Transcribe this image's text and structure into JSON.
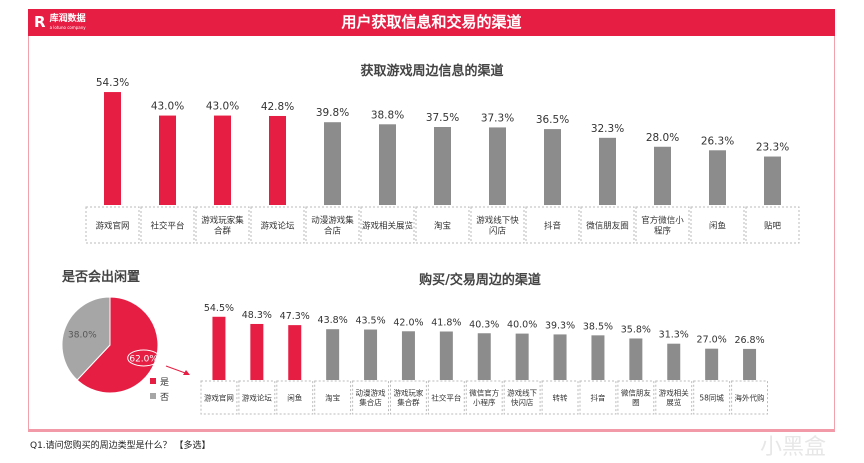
{
  "header": {
    "title": "用户获取信息和交易的渠道",
    "logo": "库润数据",
    "logo_sub": "a lotuno company"
  },
  "footer": "Q1.请问您购买的周边类型是什么？ 【多选】",
  "watermark": "小黑盒",
  "colors": {
    "red": "#e61e43",
    "gray": "#8c8c8c",
    "pie_gray": "#a6a6a6"
  },
  "chart_data": [
    {
      "type": "bar",
      "title": "获取游戏周边信息的渠道",
      "categories": [
        "游戏官网",
        "社交平台",
        "游戏玩家集合群",
        "游戏论坛",
        "动漫游戏集合店",
        "游戏相关展览",
        "淘宝",
        "游戏线下快闪店",
        "抖音",
        "微信朋友圈",
        "官方微信小程序",
        "闲鱼",
        "贴吧"
      ],
      "labels": [
        [
          "游戏官网"
        ],
        [
          "社交平台"
        ],
        [
          "游戏玩家集",
          "合群"
        ],
        [
          "游戏论坛"
        ],
        [
          "动漫游戏集",
          "合店"
        ],
        [
          "游戏相关展览"
        ],
        [
          "淘宝"
        ],
        [
          "游戏线下快",
          "闪店"
        ],
        [
          "抖音"
        ],
        [
          "微信朋友圈"
        ],
        [
          "官方微信小",
          "程序"
        ],
        [
          "闲鱼"
        ],
        [
          "贴吧"
        ]
      ],
      "values": [
        54.3,
        43.0,
        43.0,
        42.8,
        39.8,
        38.8,
        37.5,
        37.3,
        36.5,
        32.3,
        28.0,
        26.3,
        23.3
      ],
      "value_labels": [
        "54.3%",
        "43.0%",
        "43.0%",
        "42.8%",
        "39.8%",
        "38.8%",
        "37.5%",
        "37.3%",
        "36.5%",
        "32.3%",
        "28.0%",
        "26.3%",
        "23.3%"
      ],
      "highlight_count": 4
    },
    {
      "type": "bar",
      "title": "购买/交易周边的渠道",
      "categories": [
        "游戏官网",
        "游戏论坛",
        "闲鱼",
        "淘宝",
        "动漫游戏集合店",
        "游戏玩家集合群",
        "社交平台",
        "微信官方小程序",
        "游戏线下快闪店",
        "转转",
        "抖音",
        "微信朋友圈",
        "游戏相关展览",
        "58同城",
        "海外代购"
      ],
      "labels": [
        [
          "游戏官网"
        ],
        [
          "游戏论坛"
        ],
        [
          "闲鱼"
        ],
        [
          "淘宝"
        ],
        [
          "动漫游戏",
          "集合店"
        ],
        [
          "游戏玩家",
          "集合群"
        ],
        [
          "社交平台"
        ],
        [
          "微信官方",
          "小程序"
        ],
        [
          "游戏线下",
          "快闪店"
        ],
        [
          "转转"
        ],
        [
          "抖音"
        ],
        [
          "微信朋友",
          "圈"
        ],
        [
          "游戏相关",
          "展览"
        ],
        [
          "58同城"
        ],
        [
          "海外代购"
        ]
      ],
      "values": [
        54.5,
        48.3,
        47.3,
        43.8,
        43.5,
        42.0,
        41.8,
        40.3,
        40.0,
        39.3,
        38.5,
        35.8,
        31.3,
        27.0,
        26.8
      ],
      "value_labels": [
        "54.5%",
        "48.3%",
        "47.3%",
        "43.8%",
        "43.5%",
        "42.0%",
        "41.8%",
        "40.3%",
        "40.0%",
        "39.3%",
        "38.5%",
        "35.8%",
        "31.3%",
        "27.0%",
        "26.8%"
      ],
      "highlight_count": 3
    },
    {
      "type": "pie",
      "title": "是否会出闲置",
      "slices": [
        {
          "label": "是",
          "value": 62.0,
          "text": "62.0%",
          "color": "#e61e43"
        },
        {
          "label": "否",
          "value": 38.0,
          "text": "38.0%",
          "color": "#a6a6a6"
        }
      ]
    }
  ]
}
